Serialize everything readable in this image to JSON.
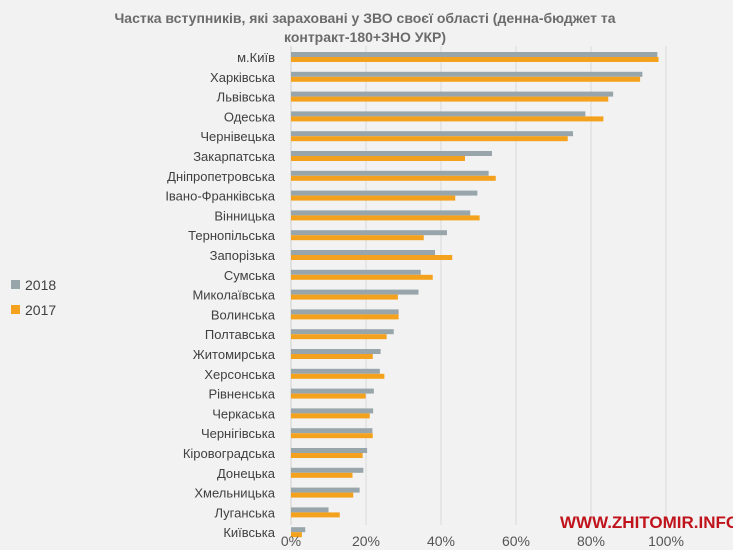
{
  "chart_data": {
    "type": "bar",
    "orientation": "horizontal",
    "title_lines": [
      "Частка вступників, які зараховані у ЗВО своєї області (денна-бюджет та",
      "контракт-180+ЗНО УКР)"
    ],
    "categories": [
      "м.Київ",
      "Харківська",
      "Львівська",
      "Одеська",
      "Чернівецька",
      "Закарпатська",
      "Дніпропетровська",
      "Івано-Франківська",
      "Вінницька",
      "Тернопільська",
      "Запорізька",
      "Сумська",
      "Миколаївська",
      "Волинська",
      "Полтавська",
      "Житомирська",
      "Херсонська",
      "Рівненська",
      "Черкаська",
      "Чернігівська",
      "Кіровоградська",
      "Донецька",
      "Хмельницька",
      "Луганська",
      "Київська"
    ],
    "series": [
      {
        "name": "2018",
        "color": "#98a6ab",
        "values": [
          97.7,
          93.7,
          85.9,
          78.5,
          75.2,
          53.6,
          52.7,
          49.7,
          47.8,
          41.6,
          38.4,
          34.6,
          34.0,
          28.7,
          27.4,
          23.9,
          23.7,
          22.1,
          21.9,
          21.7,
          20.3,
          19.3,
          18.3,
          10.0,
          3.8
        ]
      },
      {
        "name": "2017",
        "color": "#f4a21d",
        "values": [
          98.0,
          93.1,
          84.6,
          83.3,
          73.8,
          46.4,
          54.6,
          43.8,
          50.3,
          35.4,
          43.0,
          37.8,
          28.5,
          28.7,
          25.5,
          21.8,
          24.9,
          19.9,
          21.0,
          21.8,
          19.1,
          16.4,
          16.6,
          13.0,
          2.9
        ]
      }
    ],
    "x_ticks": [
      "0%",
      "20%",
      "40%",
      "60%",
      "80%",
      "100%"
    ],
    "x_tick_values": [
      0,
      20,
      40,
      60,
      80,
      100
    ],
    "xlim": [
      0,
      100
    ],
    "grid": true,
    "legend_placement": "left"
  },
  "watermark": "WWW.ZHITOMIR.INFO"
}
